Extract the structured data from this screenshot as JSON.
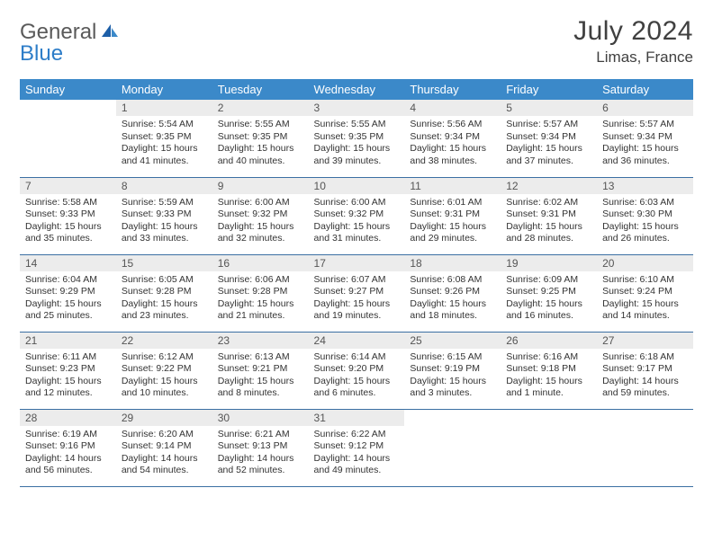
{
  "logo": {
    "word1": "General",
    "word2": "Blue"
  },
  "title": "July 2024",
  "location": "Limas, France",
  "colors": {
    "header_bg": "#3b89c9",
    "header_text": "#ffffff",
    "daynum_bg": "#ececec",
    "daynum_text": "#555555",
    "cell_border": "#3b6fa3",
    "title_color": "#404040",
    "logo_gray": "#5a5a5a",
    "logo_blue": "#2d7dc8"
  },
  "weekdays": [
    "Sunday",
    "Monday",
    "Tuesday",
    "Wednesday",
    "Thursday",
    "Friday",
    "Saturday"
  ],
  "weeks": [
    [
      null,
      {
        "n": "1",
        "sr": "Sunrise: 5:54 AM",
        "ss": "Sunset: 9:35 PM",
        "dl": "Daylight: 15 hours and 41 minutes."
      },
      {
        "n": "2",
        "sr": "Sunrise: 5:55 AM",
        "ss": "Sunset: 9:35 PM",
        "dl": "Daylight: 15 hours and 40 minutes."
      },
      {
        "n": "3",
        "sr": "Sunrise: 5:55 AM",
        "ss": "Sunset: 9:35 PM",
        "dl": "Daylight: 15 hours and 39 minutes."
      },
      {
        "n": "4",
        "sr": "Sunrise: 5:56 AM",
        "ss": "Sunset: 9:34 PM",
        "dl": "Daylight: 15 hours and 38 minutes."
      },
      {
        "n": "5",
        "sr": "Sunrise: 5:57 AM",
        "ss": "Sunset: 9:34 PM",
        "dl": "Daylight: 15 hours and 37 minutes."
      },
      {
        "n": "6",
        "sr": "Sunrise: 5:57 AM",
        "ss": "Sunset: 9:34 PM",
        "dl": "Daylight: 15 hours and 36 minutes."
      }
    ],
    [
      {
        "n": "7",
        "sr": "Sunrise: 5:58 AM",
        "ss": "Sunset: 9:33 PM",
        "dl": "Daylight: 15 hours and 35 minutes."
      },
      {
        "n": "8",
        "sr": "Sunrise: 5:59 AM",
        "ss": "Sunset: 9:33 PM",
        "dl": "Daylight: 15 hours and 33 minutes."
      },
      {
        "n": "9",
        "sr": "Sunrise: 6:00 AM",
        "ss": "Sunset: 9:32 PM",
        "dl": "Daylight: 15 hours and 32 minutes."
      },
      {
        "n": "10",
        "sr": "Sunrise: 6:00 AM",
        "ss": "Sunset: 9:32 PM",
        "dl": "Daylight: 15 hours and 31 minutes."
      },
      {
        "n": "11",
        "sr": "Sunrise: 6:01 AM",
        "ss": "Sunset: 9:31 PM",
        "dl": "Daylight: 15 hours and 29 minutes."
      },
      {
        "n": "12",
        "sr": "Sunrise: 6:02 AM",
        "ss": "Sunset: 9:31 PM",
        "dl": "Daylight: 15 hours and 28 minutes."
      },
      {
        "n": "13",
        "sr": "Sunrise: 6:03 AM",
        "ss": "Sunset: 9:30 PM",
        "dl": "Daylight: 15 hours and 26 minutes."
      }
    ],
    [
      {
        "n": "14",
        "sr": "Sunrise: 6:04 AM",
        "ss": "Sunset: 9:29 PM",
        "dl": "Daylight: 15 hours and 25 minutes."
      },
      {
        "n": "15",
        "sr": "Sunrise: 6:05 AM",
        "ss": "Sunset: 9:28 PM",
        "dl": "Daylight: 15 hours and 23 minutes."
      },
      {
        "n": "16",
        "sr": "Sunrise: 6:06 AM",
        "ss": "Sunset: 9:28 PM",
        "dl": "Daylight: 15 hours and 21 minutes."
      },
      {
        "n": "17",
        "sr": "Sunrise: 6:07 AM",
        "ss": "Sunset: 9:27 PM",
        "dl": "Daylight: 15 hours and 19 minutes."
      },
      {
        "n": "18",
        "sr": "Sunrise: 6:08 AM",
        "ss": "Sunset: 9:26 PM",
        "dl": "Daylight: 15 hours and 18 minutes."
      },
      {
        "n": "19",
        "sr": "Sunrise: 6:09 AM",
        "ss": "Sunset: 9:25 PM",
        "dl": "Daylight: 15 hours and 16 minutes."
      },
      {
        "n": "20",
        "sr": "Sunrise: 6:10 AM",
        "ss": "Sunset: 9:24 PM",
        "dl": "Daylight: 15 hours and 14 minutes."
      }
    ],
    [
      {
        "n": "21",
        "sr": "Sunrise: 6:11 AM",
        "ss": "Sunset: 9:23 PM",
        "dl": "Daylight: 15 hours and 12 minutes."
      },
      {
        "n": "22",
        "sr": "Sunrise: 6:12 AM",
        "ss": "Sunset: 9:22 PM",
        "dl": "Daylight: 15 hours and 10 minutes."
      },
      {
        "n": "23",
        "sr": "Sunrise: 6:13 AM",
        "ss": "Sunset: 9:21 PM",
        "dl": "Daylight: 15 hours and 8 minutes."
      },
      {
        "n": "24",
        "sr": "Sunrise: 6:14 AM",
        "ss": "Sunset: 9:20 PM",
        "dl": "Daylight: 15 hours and 6 minutes."
      },
      {
        "n": "25",
        "sr": "Sunrise: 6:15 AM",
        "ss": "Sunset: 9:19 PM",
        "dl": "Daylight: 15 hours and 3 minutes."
      },
      {
        "n": "26",
        "sr": "Sunrise: 6:16 AM",
        "ss": "Sunset: 9:18 PM",
        "dl": "Daylight: 15 hours and 1 minute."
      },
      {
        "n": "27",
        "sr": "Sunrise: 6:18 AM",
        "ss": "Sunset: 9:17 PM",
        "dl": "Daylight: 14 hours and 59 minutes."
      }
    ],
    [
      {
        "n": "28",
        "sr": "Sunrise: 6:19 AM",
        "ss": "Sunset: 9:16 PM",
        "dl": "Daylight: 14 hours and 56 minutes."
      },
      {
        "n": "29",
        "sr": "Sunrise: 6:20 AM",
        "ss": "Sunset: 9:14 PM",
        "dl": "Daylight: 14 hours and 54 minutes."
      },
      {
        "n": "30",
        "sr": "Sunrise: 6:21 AM",
        "ss": "Sunset: 9:13 PM",
        "dl": "Daylight: 14 hours and 52 minutes."
      },
      {
        "n": "31",
        "sr": "Sunrise: 6:22 AM",
        "ss": "Sunset: 9:12 PM",
        "dl": "Daylight: 14 hours and 49 minutes."
      },
      null,
      null,
      null
    ]
  ]
}
